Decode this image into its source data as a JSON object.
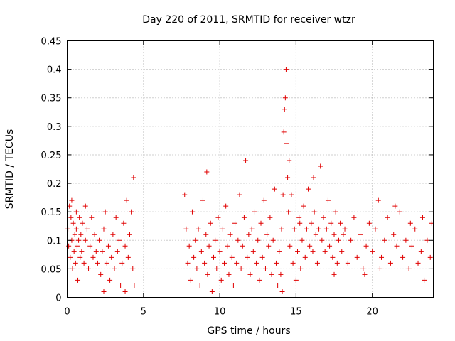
{
  "chart_data": {
    "type": "scatter",
    "title": "Day 220 of 2011, SRMTID for receiver wtzr",
    "xlabel": "GPS time / hours",
    "ylabel": "SRMTID / TECUs",
    "xlim": [
      0,
      24
    ],
    "ylim": [
      0,
      0.45
    ],
    "xticks": [
      0,
      5,
      10,
      15,
      20
    ],
    "xtick_labels": [
      "0",
      "5",
      "10",
      "15",
      "20"
    ],
    "yticks": [
      0,
      0.05,
      0.1,
      0.15,
      0.2,
      0.25,
      0.3,
      0.35,
      0.4,
      0.45
    ],
    "ytick_labels": [
      "0",
      "0.05",
      "0.1",
      "0.15",
      "0.2",
      "0.25",
      "0.3",
      "0.35",
      "0.4",
      "0.45"
    ],
    "grid": true,
    "marker": "+",
    "series": [
      {
        "name": "SRMTID",
        "color": "#e00000",
        "points": [
          [
            0.05,
            0.12
          ],
          [
            0.1,
            0.09
          ],
          [
            0.15,
            0.16
          ],
          [
            0.2,
            0.07
          ],
          [
            0.25,
            0.14
          ],
          [
            0.3,
            0.1
          ],
          [
            0.35,
            0.05
          ],
          [
            0.4,
            0.13
          ],
          [
            0.45,
            0.08
          ],
          [
            0.5,
            0.11
          ],
          [
            0.55,
            0.06
          ],
          [
            0.6,
            0.12
          ],
          [
            0.65,
            0.09
          ],
          [
            0.7,
            0.03
          ],
          [
            0.75,
            0.1
          ],
          [
            0.8,
            0.14
          ],
          [
            0.85,
            0.07
          ],
          [
            0.9,
            0.11
          ],
          [
            0.95,
            0.08
          ],
          [
            1.0,
            0.13
          ],
          [
            1.1,
            0.06
          ],
          [
            1.2,
            0.1
          ],
          [
            1.3,
            0.12
          ],
          [
            1.4,
            0.05
          ],
          [
            1.5,
            0.09
          ],
          [
            1.6,
            0.14
          ],
          [
            1.7,
            0.07
          ],
          [
            1.8,
            0.11
          ],
          [
            1.9,
            0.08
          ],
          [
            2.0,
            0.06
          ],
          [
            2.1,
            0.1
          ],
          [
            2.2,
            0.04
          ],
          [
            2.3,
            0.08
          ],
          [
            2.4,
            0.12
          ],
          [
            2.5,
            0.15
          ],
          [
            2.6,
            0.06
          ],
          [
            2.7,
            0.09
          ],
          [
            2.8,
            0.03
          ],
          [
            2.9,
            0.07
          ],
          [
            3.0,
            0.11
          ],
          [
            3.1,
            0.05
          ],
          [
            3.2,
            0.14
          ],
          [
            3.3,
            0.08
          ],
          [
            3.4,
            0.1
          ],
          [
            3.5,
            0.02
          ],
          [
            3.6,
            0.06
          ],
          [
            3.7,
            0.13
          ],
          [
            3.8,
            0.09
          ],
          [
            3.9,
            0.17
          ],
          [
            4.0,
            0.07
          ],
          [
            4.1,
            0.11
          ],
          [
            4.2,
            0.15
          ],
          [
            4.3,
            0.05
          ],
          [
            4.35,
            0.21
          ],
          [
            4.4,
            0.02
          ],
          [
            0.3,
            0.17
          ],
          [
            1.2,
            0.16
          ],
          [
            2.4,
            0.01
          ],
          [
            3.8,
            0.01
          ],
          [
            0.6,
            0.15
          ],
          [
            7.7,
            0.18
          ],
          [
            7.8,
            0.12
          ],
          [
            7.9,
            0.06
          ],
          [
            8.0,
            0.09
          ],
          [
            8.1,
            0.03
          ],
          [
            8.2,
            0.15
          ],
          [
            8.3,
            0.07
          ],
          [
            8.4,
            0.1
          ],
          [
            8.5,
            0.05
          ],
          [
            8.6,
            0.12
          ],
          [
            8.7,
            0.02
          ],
          [
            8.8,
            0.08
          ],
          [
            8.9,
            0.17
          ],
          [
            9.0,
            0.06
          ],
          [
            9.1,
            0.11
          ],
          [
            9.15,
            0.22
          ],
          [
            9.2,
            0.04
          ],
          [
            9.3,
            0.09
          ],
          [
            9.4,
            0.13
          ],
          [
            9.5,
            0.01
          ],
          [
            9.6,
            0.07
          ],
          [
            9.7,
            0.1
          ],
          [
            9.8,
            0.05
          ],
          [
            9.9,
            0.14
          ],
          [
            10.0,
            0.08
          ],
          [
            10.1,
            0.03
          ],
          [
            10.2,
            0.12
          ],
          [
            10.3,
            0.06
          ],
          [
            10.4,
            0.16
          ],
          [
            10.5,
            0.09
          ],
          [
            10.6,
            0.04
          ],
          [
            10.7,
            0.11
          ],
          [
            10.8,
            0.07
          ],
          [
            10.9,
            0.02
          ],
          [
            11.0,
            0.13
          ],
          [
            11.1,
            0.06
          ],
          [
            11.2,
            0.1
          ],
          [
            11.3,
            0.18
          ],
          [
            11.4,
            0.05
          ],
          [
            11.5,
            0.09
          ],
          [
            11.6,
            0.14
          ],
          [
            11.7,
            0.24
          ],
          [
            11.8,
            0.07
          ],
          [
            11.9,
            0.11
          ],
          [
            12.0,
            0.04
          ],
          [
            12.1,
            0.12
          ],
          [
            12.2,
            0.08
          ],
          [
            12.3,
            0.15
          ],
          [
            12.4,
            0.06
          ],
          [
            12.5,
            0.1
          ],
          [
            12.6,
            0.03
          ],
          [
            12.7,
            0.13
          ],
          [
            12.8,
            0.07
          ],
          [
            12.9,
            0.17
          ],
          [
            13.0,
            0.05
          ],
          [
            13.1,
            0.11
          ],
          [
            13.2,
            0.09
          ],
          [
            13.3,
            0.14
          ],
          [
            13.4,
            0.04
          ],
          [
            13.5,
            0.1
          ],
          [
            13.6,
            0.19
          ],
          [
            13.7,
            0.06
          ],
          [
            13.8,
            0.02
          ],
          [
            13.9,
            0.08
          ],
          [
            14.0,
            0.04
          ],
          [
            14.05,
            0.12
          ],
          [
            14.1,
            0.01
          ],
          [
            14.15,
            0.18
          ],
          [
            14.2,
            0.29
          ],
          [
            14.25,
            0.33
          ],
          [
            14.3,
            0.35
          ],
          [
            14.35,
            0.4
          ],
          [
            14.4,
            0.27
          ],
          [
            14.45,
            0.21
          ],
          [
            14.5,
            0.15
          ],
          [
            14.55,
            0.24
          ],
          [
            14.6,
            0.09
          ],
          [
            14.7,
            0.18
          ],
          [
            14.8,
            0.06
          ],
          [
            14.9,
            0.12
          ],
          [
            15.0,
            0.03
          ],
          [
            15.1,
            0.08
          ],
          [
            15.2,
            0.14
          ],
          [
            15.3,
            0.05
          ],
          [
            15.4,
            0.1
          ],
          [
            15.5,
            0.16
          ],
          [
            15.6,
            0.07
          ],
          [
            15.7,
            0.12
          ],
          [
            15.8,
            0.19
          ],
          [
            15.9,
            0.09
          ],
          [
            16.0,
            0.13
          ],
          [
            16.1,
            0.08
          ],
          [
            16.2,
            0.15
          ],
          [
            16.3,
            0.11
          ],
          [
            16.4,
            0.06
          ],
          [
            16.5,
            0.12
          ],
          [
            16.6,
            0.23
          ],
          [
            16.7,
            0.1
          ],
          [
            16.8,
            0.14
          ],
          [
            16.9,
            0.08
          ],
          [
            17.0,
            0.12
          ],
          [
            17.1,
            0.17
          ],
          [
            17.2,
            0.09
          ],
          [
            17.3,
            0.13
          ],
          [
            17.4,
            0.07
          ],
          [
            17.5,
            0.11
          ],
          [
            17.6,
            0.15
          ],
          [
            17.7,
            0.06
          ],
          [
            17.8,
            0.1
          ],
          [
            17.9,
            0.13
          ],
          [
            18.0,
            0.08
          ],
          [
            18.2,
            0.12
          ],
          [
            18.4,
            0.06
          ],
          [
            18.6,
            0.1
          ],
          [
            18.8,
            0.14
          ],
          [
            19.0,
            0.07
          ],
          [
            19.2,
            0.11
          ],
          [
            19.4,
            0.05
          ],
          [
            19.6,
            0.09
          ],
          [
            19.8,
            0.13
          ],
          [
            20.0,
            0.08
          ],
          [
            20.2,
            0.12
          ],
          [
            20.4,
            0.17
          ],
          [
            20.6,
            0.07
          ],
          [
            20.8,
            0.1
          ],
          [
            21.0,
            0.14
          ],
          [
            21.2,
            0.06
          ],
          [
            21.4,
            0.11
          ],
          [
            21.6,
            0.09
          ],
          [
            21.8,
            0.15
          ],
          [
            22.0,
            0.07
          ],
          [
            22.2,
            0.1
          ],
          [
            22.4,
            0.05
          ],
          [
            22.6,
            0.09
          ],
          [
            22.8,
            0.12
          ],
          [
            23.0,
            0.06
          ],
          [
            23.2,
            0.08
          ],
          [
            23.4,
            0.03
          ],
          [
            23.6,
            0.1
          ],
          [
            23.8,
            0.07
          ],
          [
            23.9,
            0.13
          ],
          [
            21.5,
            0.16
          ],
          [
            19.5,
            0.04
          ],
          [
            18.1,
            0.11
          ],
          [
            16.15,
            0.21
          ],
          [
            15.25,
            0.13
          ],
          [
            22.5,
            0.13
          ],
          [
            20.5,
            0.05
          ],
          [
            17.5,
            0.04
          ],
          [
            23.3,
            0.14
          ]
        ]
      }
    ]
  }
}
